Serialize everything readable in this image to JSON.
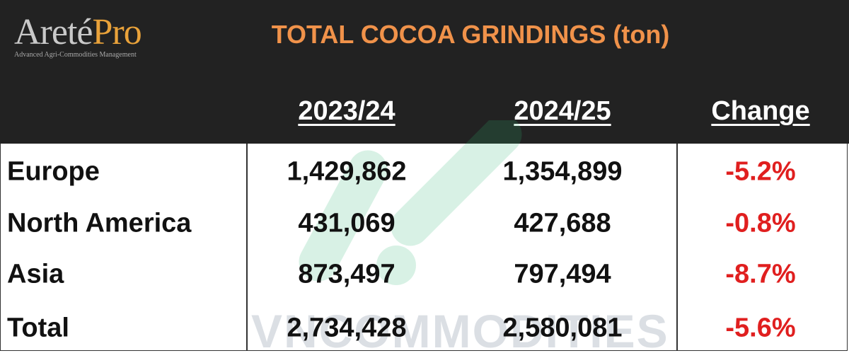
{
  "logo": {
    "name_main": "Areté",
    "name_accent": "Pro",
    "tagline": "Advanced Agri-Commodities Management"
  },
  "title": "TOTAL COCOA GRINDINGS (ton)",
  "columns": [
    "2023/24",
    "2024/25",
    "Change"
  ],
  "rows": [
    {
      "region": "Europe",
      "y2023_24": "1,429,862",
      "y2024_25": "1,354,899",
      "change": "-5.2%"
    },
    {
      "region": "North America",
      "y2023_24": "431,069",
      "y2024_25": "427,688",
      "change": "-0.8%"
    },
    {
      "region": "Asia",
      "y2023_24": "873,497",
      "y2024_25": "797,494",
      "change": "-8.7%"
    },
    {
      "region": "Total",
      "y2023_24": "2,734,428",
      "y2024_25": "2,580,081",
      "change": "-5.6%"
    }
  ],
  "watermark": "VNCOMMODITIES",
  "colors": {
    "header_bg": "#222222",
    "title": "#f0924a",
    "negative": "#e01f1f",
    "watermark": "#2eb872"
  }
}
